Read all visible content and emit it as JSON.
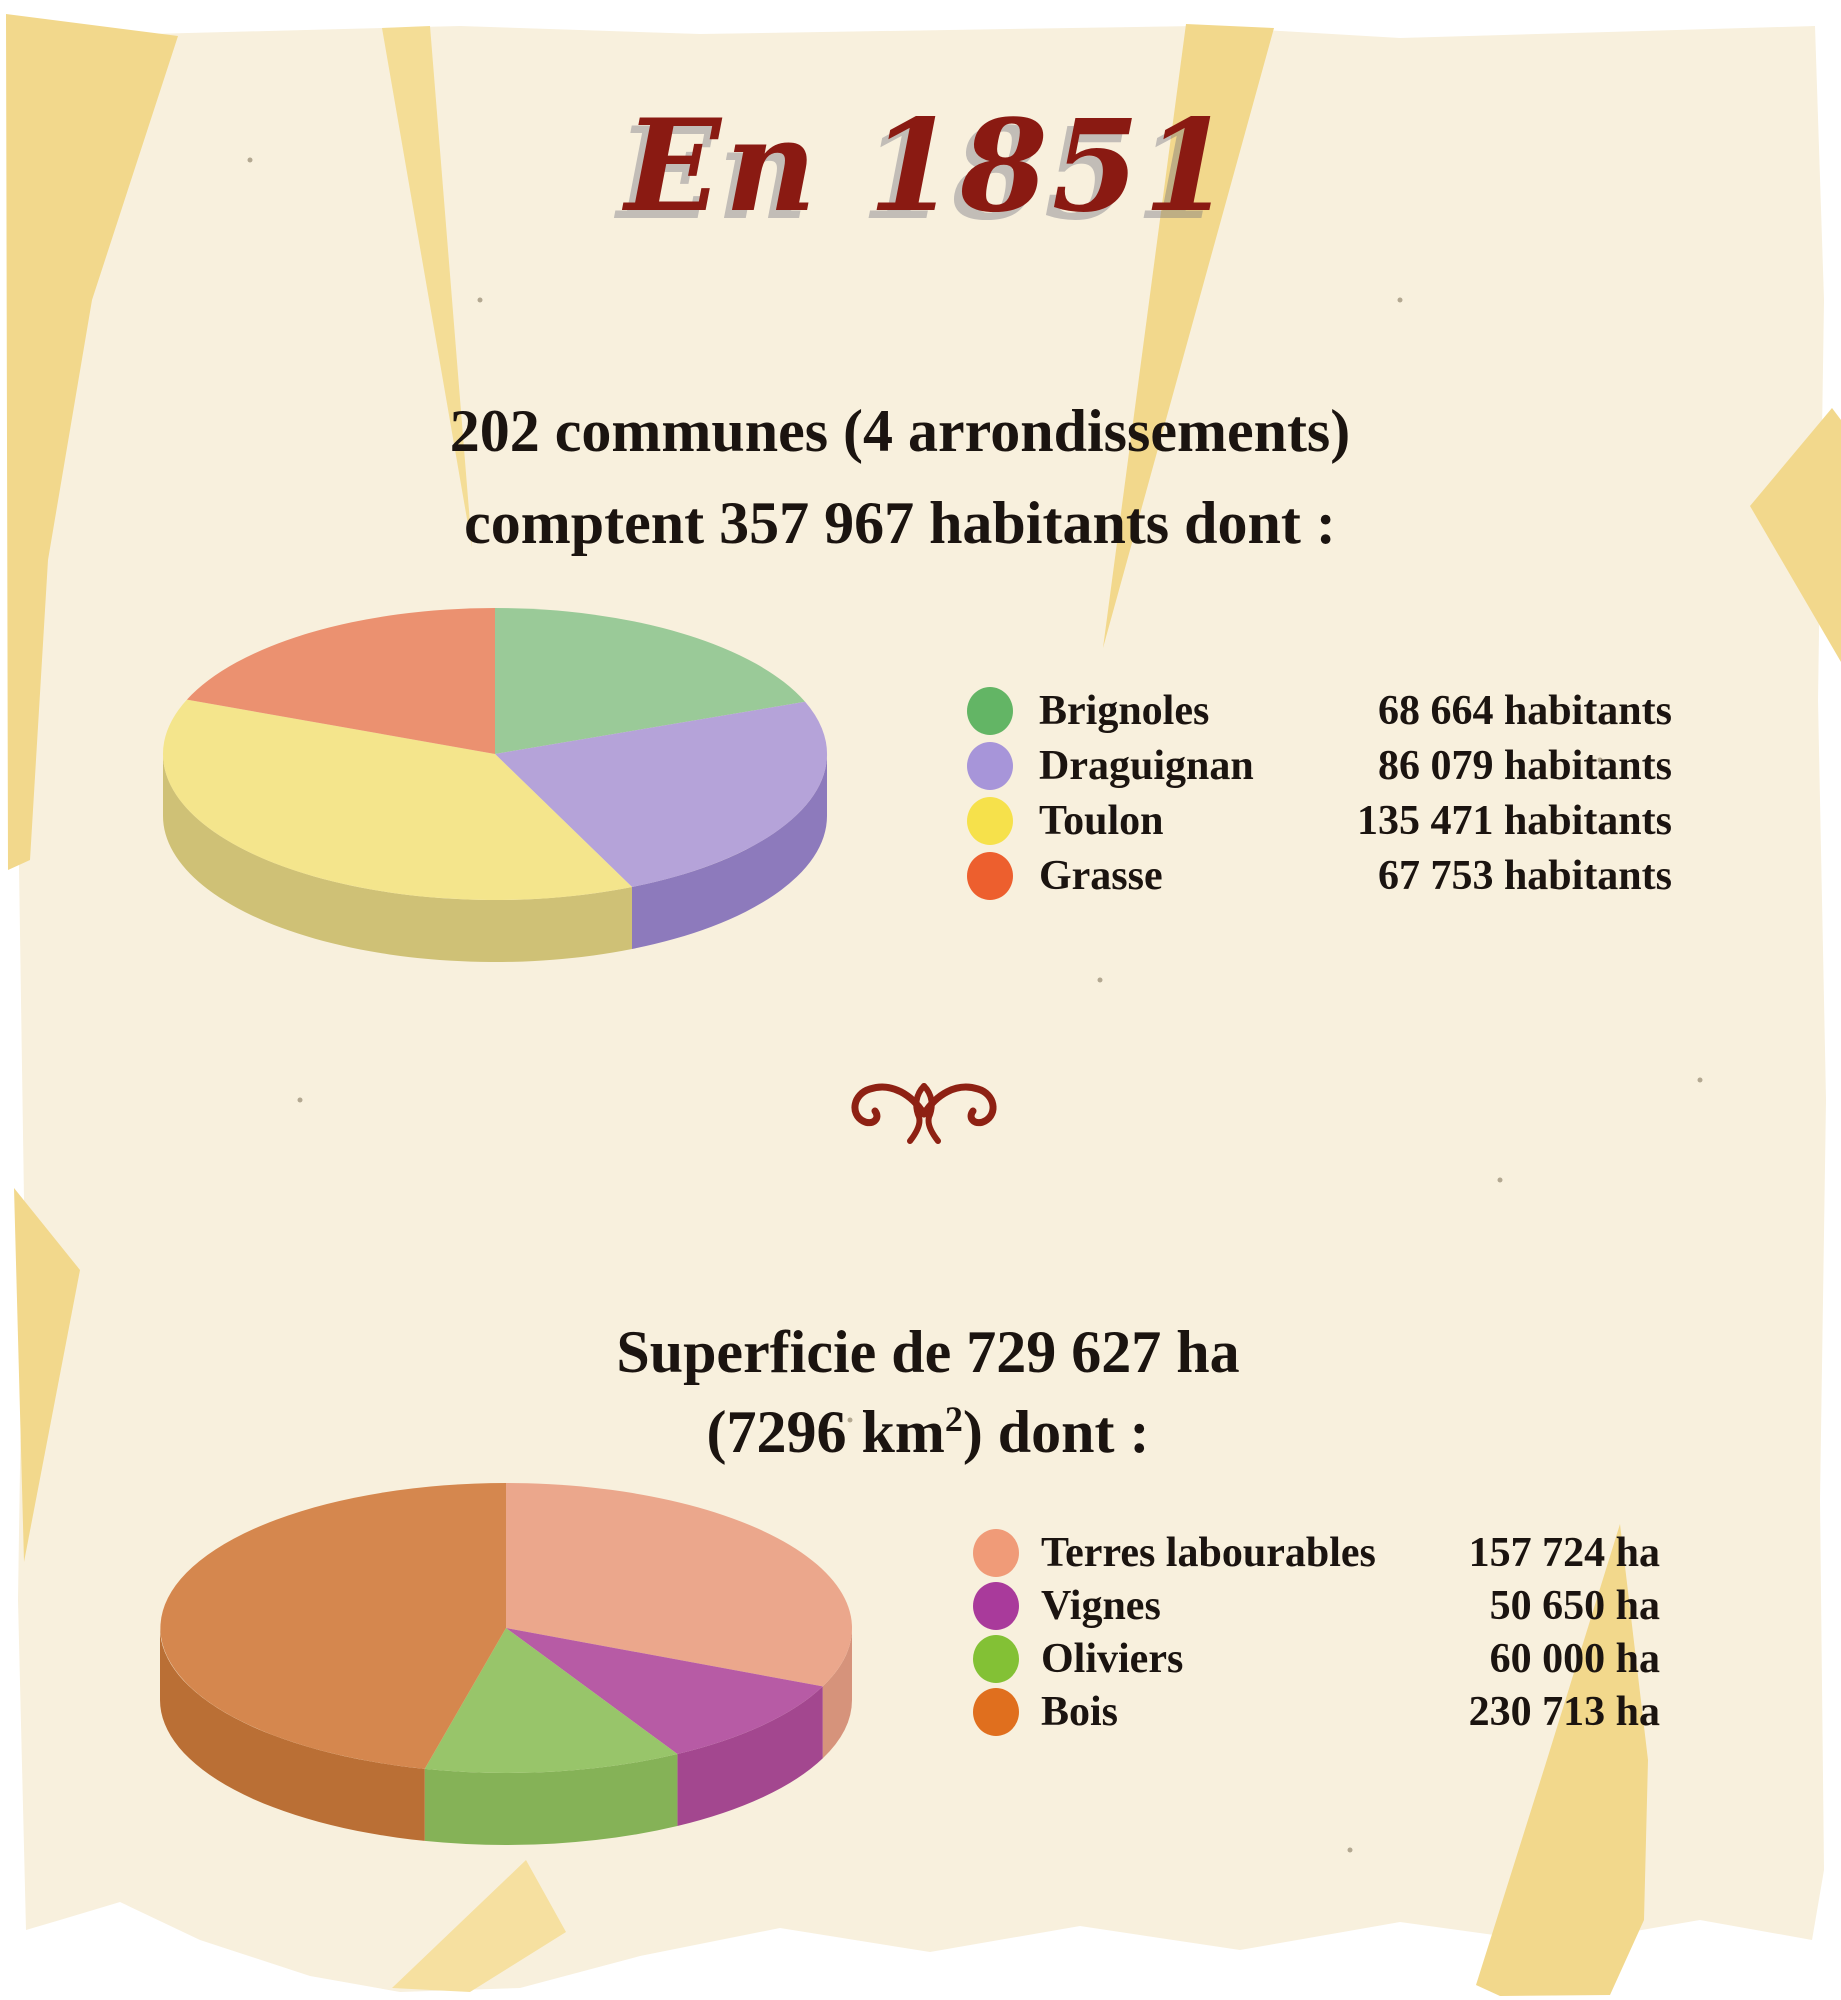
{
  "page": {
    "title": "En 1851",
    "heading1_line1": "202 communes (4 arrondissements)",
    "heading1_line2": "comptent 357 967 habitants dont :",
    "heading2_line1": "Superficie de 729 627 ha",
    "heading2_line2_pre": "(7296 km",
    "heading2_line2_sup": "2",
    "heading2_line2_post": ") dont :"
  },
  "palette": {
    "page_white": "#ffffff",
    "paper_cream": "#f8f0dd",
    "paper_yellow": "#f2d88c",
    "paper_yellow_light": "#f6e0a0",
    "title_red": "#8a1a12",
    "ornament_red": "#8e2113",
    "text_dark": "#1b1410"
  },
  "chart_data": [
    {
      "type": "pie",
      "style": "3d",
      "title": "202 communes (4 arrondissements) comptent 357 967 habitants dont :",
      "unit": "habitants",
      "total": 357967,
      "start_angle_deg": -90,
      "direction": "clockwise",
      "legend_position": "right",
      "series": [
        {
          "label": "Brignoles",
          "value": 68664,
          "value_text": "68 664 habitants",
          "percent": 19.2,
          "slice_color": "#9aca98",
          "side_color": "#82b184",
          "dot_color": "#63b565"
        },
        {
          "label": "Draguignan",
          "value": 86079,
          "value_text": "86 079 habitants",
          "percent": 24.0,
          "slice_color": "#b5a3d9",
          "side_color": "#8d7abc",
          "dot_color": "#a795d9"
        },
        {
          "label": "Toulon",
          "value": 135471,
          "value_text": "135 471 habitants",
          "percent": 37.8,
          "slice_color": "#f4e58c",
          "side_color": "#cfc176",
          "dot_color": "#f6e14b"
        },
        {
          "label": "Grasse",
          "value": 67753,
          "value_text": "67 753 habitants",
          "percent": 18.9,
          "slice_color": "#eb9170",
          "side_color": "#d27d5e",
          "dot_color": "#ed5f2e"
        }
      ]
    },
    {
      "type": "pie",
      "style": "3d",
      "title": "Superficie de 729 627 ha (7296 km2) dont :",
      "unit": "ha",
      "total_surface_ha": 729627,
      "total_surface_km2": 7296,
      "start_angle_deg": -90,
      "direction": "clockwise",
      "legend_position": "right",
      "series": [
        {
          "label": "Terres labourables",
          "value": 157724,
          "value_text": "157 724 ha",
          "percent": 31.6,
          "slice_color": "#eba78c",
          "side_color": "#d6937b",
          "dot_color": "#f09b78"
        },
        {
          "label": "Vignes",
          "value": 50650,
          "value_text": "50 650 ha",
          "percent": 10.1,
          "slice_color": "#b75ba5",
          "side_color": "#a3478f",
          "dot_color": "#a93a9b"
        },
        {
          "label": "Oliviers",
          "value": 60000,
          "value_text": "60 000 ha",
          "percent": 12.0,
          "slice_color": "#98c56a",
          "side_color": "#85b257",
          "dot_color": "#83c135"
        },
        {
          "label": "Bois",
          "value": 230713,
          "value_text": "230 713 ha",
          "percent": 46.2,
          "slice_color": "#d5874e",
          "side_color": "#ba6f35",
          "dot_color": "#e06f1e"
        }
      ]
    }
  ]
}
